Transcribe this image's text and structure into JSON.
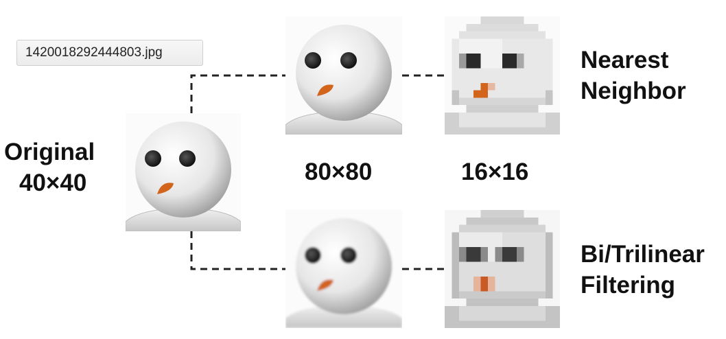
{
  "tooltip": {
    "filename": "1420018292444803.jpg"
  },
  "labels": {
    "original_line1": "Original",
    "original_line2": "40×40",
    "size_mid": "80×80",
    "size_small": "16×16",
    "nearest_line1": "Nearest",
    "nearest_line2": "Neighbor",
    "filter_line1": "Bi/Trilinear",
    "filter_line2": "Filtering"
  },
  "images": {
    "original": "snowman-original",
    "nn_80": "snowman-nearest-80",
    "nn_16": "snowman-nearest-16",
    "bl_80": "snowman-bilinear-80",
    "bl_16": "snowman-bilinear-16"
  },
  "colors": {
    "carrot": "#d2641c",
    "eye": "#2a2a2a",
    "line": "#222222"
  }
}
